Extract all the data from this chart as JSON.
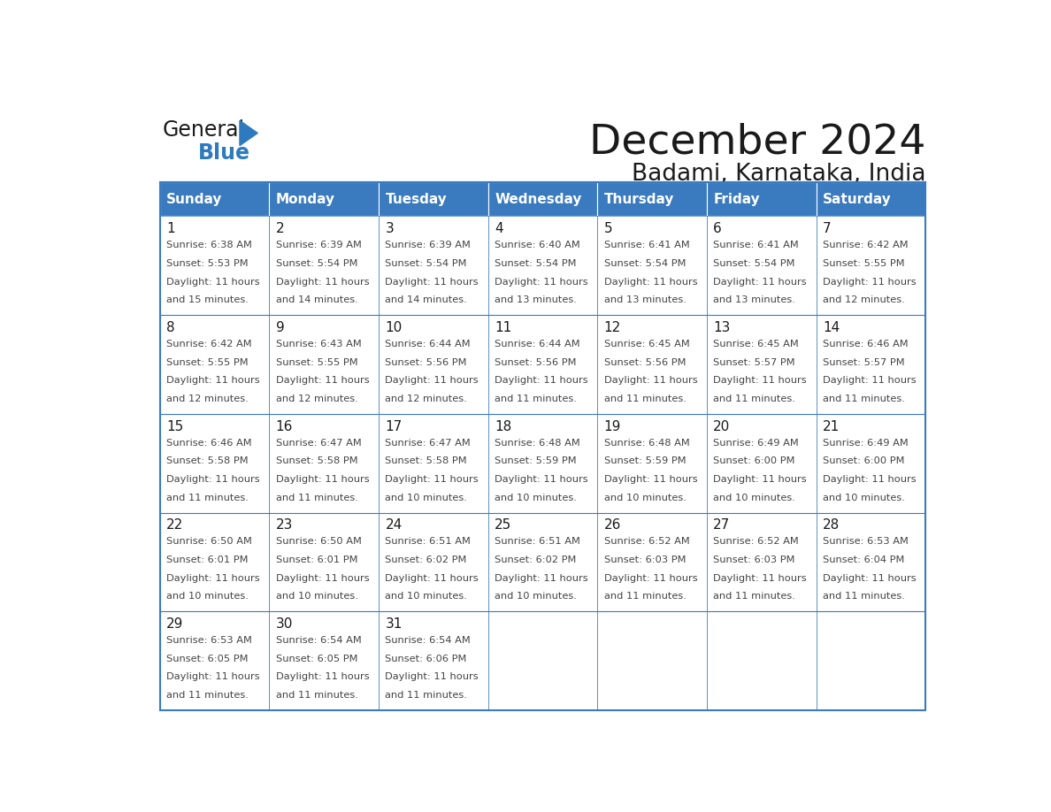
{
  "title": "December 2024",
  "subtitle": "Badami, Karnataka, India",
  "days_of_week": [
    "Sunday",
    "Monday",
    "Tuesday",
    "Wednesday",
    "Thursday",
    "Friday",
    "Saturday"
  ],
  "header_bg": "#3a7abf",
  "header_text": "#ffffff",
  "cell_bg": "#ffffff",
  "border_color": "#3a7abf",
  "title_color": "#1a1a1a",
  "subtitle_color": "#1a1a1a",
  "day_num_color": "#1a1a1a",
  "cell_text_color": "#444444",
  "logo_general_color": "#1a1a1a",
  "logo_blue_color": "#2e7abf",
  "calendar_data": [
    [
      {
        "day": 1,
        "sunrise": "6:38 AM",
        "sunset": "5:53 PM",
        "daylight_minutes": "15 minutes."
      },
      {
        "day": 2,
        "sunrise": "6:39 AM",
        "sunset": "5:54 PM",
        "daylight_minutes": "14 minutes."
      },
      {
        "day": 3,
        "sunrise": "6:39 AM",
        "sunset": "5:54 PM",
        "daylight_minutes": "14 minutes."
      },
      {
        "day": 4,
        "sunrise": "6:40 AM",
        "sunset": "5:54 PM",
        "daylight_minutes": "13 minutes."
      },
      {
        "day": 5,
        "sunrise": "6:41 AM",
        "sunset": "5:54 PM",
        "daylight_minutes": "13 minutes."
      },
      {
        "day": 6,
        "sunrise": "6:41 AM",
        "sunset": "5:54 PM",
        "daylight_minutes": "13 minutes."
      },
      {
        "day": 7,
        "sunrise": "6:42 AM",
        "sunset": "5:55 PM",
        "daylight_minutes": "12 minutes."
      }
    ],
    [
      {
        "day": 8,
        "sunrise": "6:42 AM",
        "sunset": "5:55 PM",
        "daylight_minutes": "12 minutes."
      },
      {
        "day": 9,
        "sunrise": "6:43 AM",
        "sunset": "5:55 PM",
        "daylight_minutes": "12 minutes."
      },
      {
        "day": 10,
        "sunrise": "6:44 AM",
        "sunset": "5:56 PM",
        "daylight_minutes": "12 minutes."
      },
      {
        "day": 11,
        "sunrise": "6:44 AM",
        "sunset": "5:56 PM",
        "daylight_minutes": "11 minutes."
      },
      {
        "day": 12,
        "sunrise": "6:45 AM",
        "sunset": "5:56 PM",
        "daylight_minutes": "11 minutes."
      },
      {
        "day": 13,
        "sunrise": "6:45 AM",
        "sunset": "5:57 PM",
        "daylight_minutes": "11 minutes."
      },
      {
        "day": 14,
        "sunrise": "6:46 AM",
        "sunset": "5:57 PM",
        "daylight_minutes": "11 minutes."
      }
    ],
    [
      {
        "day": 15,
        "sunrise": "6:46 AM",
        "sunset": "5:58 PM",
        "daylight_minutes": "11 minutes."
      },
      {
        "day": 16,
        "sunrise": "6:47 AM",
        "sunset": "5:58 PM",
        "daylight_minutes": "11 minutes."
      },
      {
        "day": 17,
        "sunrise": "6:47 AM",
        "sunset": "5:58 PM",
        "daylight_minutes": "10 minutes."
      },
      {
        "day": 18,
        "sunrise": "6:48 AM",
        "sunset": "5:59 PM",
        "daylight_minutes": "10 minutes."
      },
      {
        "day": 19,
        "sunrise": "6:48 AM",
        "sunset": "5:59 PM",
        "daylight_minutes": "10 minutes."
      },
      {
        "day": 20,
        "sunrise": "6:49 AM",
        "sunset": "6:00 PM",
        "daylight_minutes": "10 minutes."
      },
      {
        "day": 21,
        "sunrise": "6:49 AM",
        "sunset": "6:00 PM",
        "daylight_minutes": "10 minutes."
      }
    ],
    [
      {
        "day": 22,
        "sunrise": "6:50 AM",
        "sunset": "6:01 PM",
        "daylight_minutes": "10 minutes."
      },
      {
        "day": 23,
        "sunrise": "6:50 AM",
        "sunset": "6:01 PM",
        "daylight_minutes": "10 minutes."
      },
      {
        "day": 24,
        "sunrise": "6:51 AM",
        "sunset": "6:02 PM",
        "daylight_minutes": "10 minutes."
      },
      {
        "day": 25,
        "sunrise": "6:51 AM",
        "sunset": "6:02 PM",
        "daylight_minutes": "10 minutes."
      },
      {
        "day": 26,
        "sunrise": "6:52 AM",
        "sunset": "6:03 PM",
        "daylight_minutes": "11 minutes."
      },
      {
        "day": 27,
        "sunrise": "6:52 AM",
        "sunset": "6:03 PM",
        "daylight_minutes": "11 minutes."
      },
      {
        "day": 28,
        "sunrise": "6:53 AM",
        "sunset": "6:04 PM",
        "daylight_minutes": "11 minutes."
      }
    ],
    [
      {
        "day": 29,
        "sunrise": "6:53 AM",
        "sunset": "6:05 PM",
        "daylight_minutes": "11 minutes."
      },
      {
        "day": 30,
        "sunrise": "6:54 AM",
        "sunset": "6:05 PM",
        "daylight_minutes": "11 minutes."
      },
      {
        "day": 31,
        "sunrise": "6:54 AM",
        "sunset": "6:06 PM",
        "daylight_minutes": "11 minutes."
      },
      null,
      null,
      null,
      null
    ]
  ]
}
